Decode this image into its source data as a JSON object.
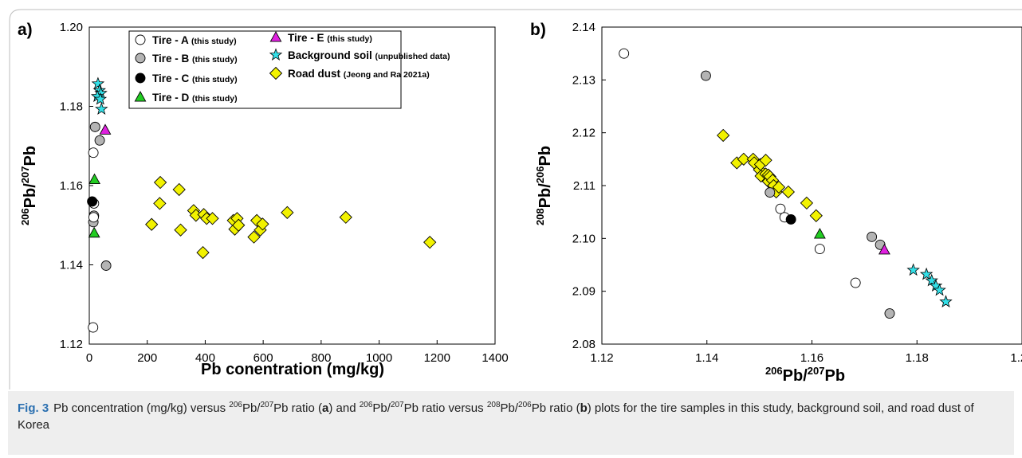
{
  "caption": {
    "figure_label": "Fig. 3",
    "p1": "Pb concentration (mg/kg) versus ",
    "s1": "206",
    "p2": "Pb/",
    "s2": "207",
    "p3": "Pb ratio (",
    "b1": "a",
    "p4": ") and ",
    "s3": "206",
    "p5": "Pb/",
    "s4": "207",
    "p6": "Pb ratio versus ",
    "s5": "208",
    "p7": "Pb/",
    "s6": "206",
    "p8": "Pb ratio (",
    "b2": "b",
    "p9": ") plots for the tire samples in this study, background soil, and road dust of Korea"
  },
  "legend": [
    {
      "key": "tireA",
      "label": "Tire - A",
      "note": "(this study)",
      "marker": "circle",
      "fill": "#ffffff"
    },
    {
      "key": "tireB",
      "label": "Tire - B",
      "note": "(this study)",
      "marker": "circle",
      "fill": "#b4b4b4"
    },
    {
      "key": "tireC",
      "label": "Tire - C",
      "note": "(this study)",
      "marker": "circle",
      "fill": "#000000"
    },
    {
      "key": "tireD",
      "label": "Tire - D",
      "note": "(this study)",
      "marker": "triangle",
      "fill": "#22cc22"
    },
    {
      "key": "tireE",
      "label": "Tire - E",
      "note": "(this study)",
      "marker": "triangle",
      "fill": "#e020e0"
    },
    {
      "key": "soil",
      "label": "Background soil",
      "note": "(unpublished data)",
      "marker": "star",
      "fill": "#33e0e8"
    },
    {
      "key": "dust",
      "label": "Road dust",
      "note": "(Jeong and Ra 2021a)",
      "marker": "diamond",
      "fill": "#f2f200"
    }
  ],
  "chart_data": [
    {
      "type": "scatter",
      "panel_label": "a)",
      "xlabel": "Pb conentration (mg/kg)",
      "ylabel": {
        "sup1": "206",
        "mid": "Pb/",
        "sup2": "207",
        "end": "Pb"
      },
      "xlim": [
        0,
        1400
      ],
      "ylim": [
        1.12,
        1.2
      ],
      "xticks": [
        "0",
        "200",
        "400",
        "600",
        "800",
        "1000",
        "1200",
        "1400"
      ],
      "yticks": [
        "1.12",
        "1.14",
        "1.16",
        "1.18",
        "1.20"
      ],
      "series": [
        {
          "key": "tireA",
          "points": [
            [
              14,
              1.1683
            ],
            [
              16,
              1.1555
            ],
            [
              15,
              1.152
            ],
            [
              13,
              1.1242
            ]
          ]
        },
        {
          "key": "tireB",
          "points": [
            [
              20,
              1.1748
            ],
            [
              36,
              1.1714
            ],
            [
              16,
              1.1524
            ],
            [
              14,
              1.1508
            ],
            [
              58,
              1.1398
            ]
          ]
        },
        {
          "key": "tireC",
          "points": [
            [
              10,
              1.156
            ]
          ]
        },
        {
          "key": "tireD",
          "points": [
            [
              18,
              1.1615
            ],
            [
              17,
              1.148
            ]
          ]
        },
        {
          "key": "tireE",
          "points": [
            [
              55,
              1.174
            ]
          ]
        },
        {
          "key": "soil",
          "points": [
            [
              30,
              1.1857
            ],
            [
              35,
              1.184
            ],
            [
              40,
              1.1833
            ],
            [
              28,
              1.1825
            ],
            [
              38,
              1.1818
            ],
            [
              42,
              1.1793
            ]
          ]
        },
        {
          "key": "dust",
          "points": [
            [
              215,
              1.1502
            ],
            [
              245,
              1.1608
            ],
            [
              243,
              1.1555
            ],
            [
              310,
              1.159
            ],
            [
              315,
              1.1488
            ],
            [
              360,
              1.1537
            ],
            [
              368,
              1.1525
            ],
            [
              392,
              1.1431
            ],
            [
              395,
              1.1527
            ],
            [
              405,
              1.1517
            ],
            [
              425,
              1.1517
            ],
            [
              497,
              1.1512
            ],
            [
              502,
              1.149
            ],
            [
              510,
              1.1517
            ],
            [
              515,
              1.15
            ],
            [
              568,
              1.147
            ],
            [
              578,
              1.1512
            ],
            [
              590,
              1.1488
            ],
            [
              598,
              1.1503
            ],
            [
              683,
              1.1532
            ],
            [
              885,
              1.152
            ],
            [
              1175,
              1.1457
            ]
          ]
        }
      ]
    },
    {
      "type": "scatter",
      "panel_label": "b)",
      "xlabel": {
        "sup1": "206",
        "mid": "Pb/",
        "sup2": "207",
        "end": "Pb"
      },
      "ylabel": {
        "sup1": "208",
        "mid": "Pb/",
        "sup2": "206",
        "end": "Pb"
      },
      "xlim": [
        1.12,
        1.2
      ],
      "ylim": [
        2.08,
        2.14
      ],
      "xticks": [
        "1.12",
        "1.14",
        "1.16",
        "1.18",
        "1.20"
      ],
      "yticks": [
        "2.08",
        "2.09",
        "2.10",
        "2.11",
        "2.12",
        "2.13",
        "2.14"
      ],
      "series": [
        {
          "key": "tireA",
          "points": [
            [
              1.1242,
              2.135
            ],
            [
              1.154,
              2.1056
            ],
            [
              1.1548,
              2.104
            ],
            [
              1.1615,
              2.098
            ],
            [
              1.1683,
              2.0916
            ]
          ]
        },
        {
          "key": "tireB",
          "points": [
            [
              1.1398,
              2.1308
            ],
            [
              1.152,
              2.1087
            ],
            [
              1.1714,
              2.1003
            ],
            [
              1.173,
              2.0988
            ],
            [
              1.1748,
              2.0858
            ]
          ]
        },
        {
          "key": "tireC",
          "points": [
            [
              1.156,
              2.1036
            ]
          ]
        },
        {
          "key": "tireD",
          "points": [
            [
              1.1615,
              2.1008
            ]
          ]
        },
        {
          "key": "tireE",
          "points": [
            [
              1.1738,
              2.0978
            ]
          ]
        },
        {
          "key": "soil",
          "points": [
            [
              1.1793,
              2.094
            ],
            [
              1.1818,
              2.0932
            ],
            [
              1.1828,
              2.092
            ],
            [
              1.1836,
              2.091
            ],
            [
              1.1843,
              2.0902
            ],
            [
              1.1855,
              2.088
            ]
          ]
        },
        {
          "key": "dust",
          "points": [
            [
              1.1431,
              2.1195
            ],
            [
              1.1457,
              2.1143
            ],
            [
              1.147,
              2.115
            ],
            [
              1.1488,
              2.115
            ],
            [
              1.149,
              2.1143
            ],
            [
              1.15,
              2.113
            ],
            [
              1.1502,
              2.114
            ],
            [
              1.1503,
              2.1118
            ],
            [
              1.1512,
              2.1148
            ],
            [
              1.1512,
              2.1122
            ],
            [
              1.1517,
              2.1108
            ],
            [
              1.1517,
              2.112
            ],
            [
              1.152,
              2.1117
            ],
            [
              1.1525,
              2.111
            ],
            [
              1.1527,
              2.11
            ],
            [
              1.1532,
              2.1088
            ],
            [
              1.1537,
              2.1097
            ],
            [
              1.1555,
              2.1088
            ],
            [
              1.159,
              2.1067
            ],
            [
              1.1608,
              2.1043
            ]
          ]
        }
      ]
    }
  ]
}
